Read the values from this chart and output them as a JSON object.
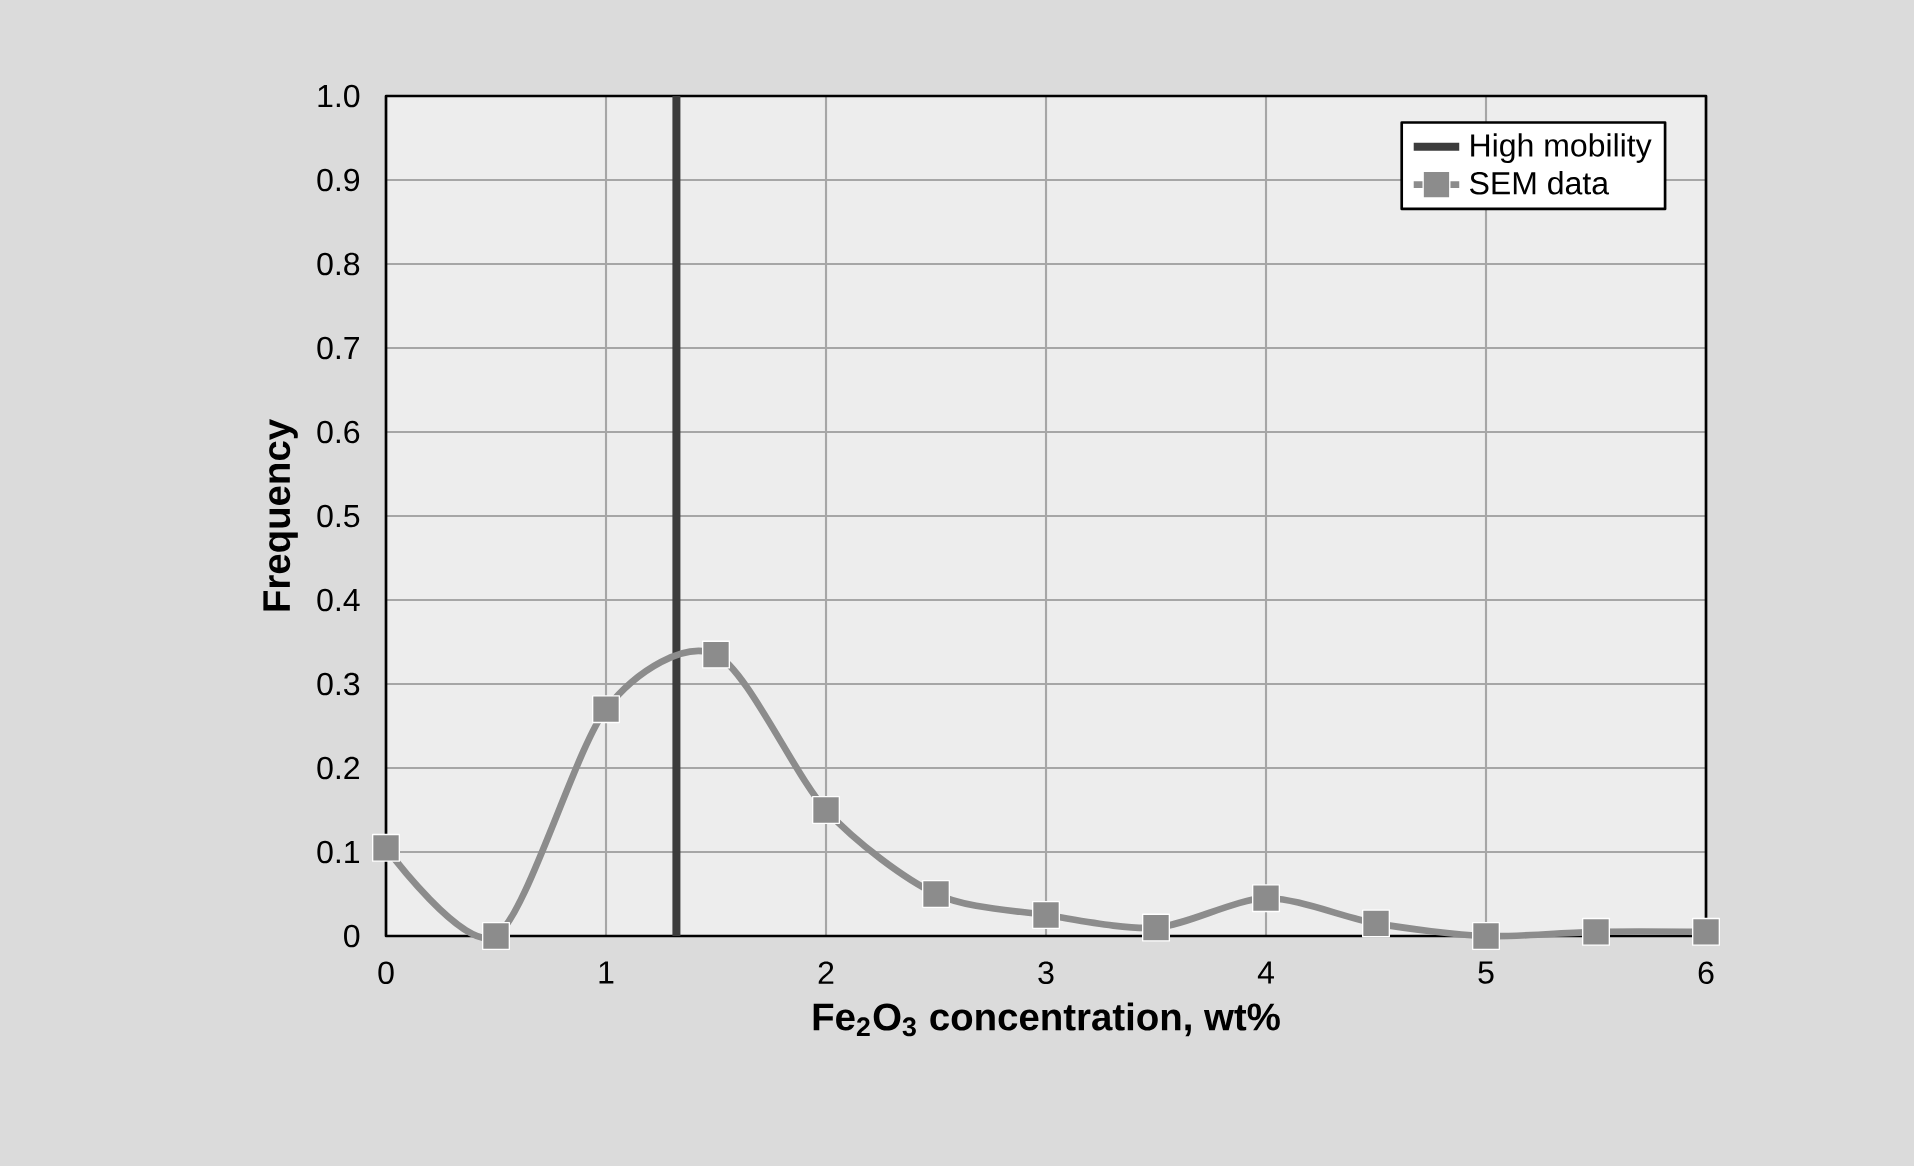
{
  "chart_data": {
    "type": "line",
    "xlabel": "Fe$_{2}$O$_{3}$ concentration, wt%",
    "ylabel": "Frequency",
    "x": [
      0,
      0.5,
      1,
      1.5,
      2,
      2.5,
      3,
      3.5,
      4,
      4.5,
      5,
      5.5,
      6
    ],
    "series": [
      {
        "name": "High mobility",
        "color": "#3c3c3c",
        "x": [
          1.32,
          1.32
        ],
        "values": [
          0,
          1
        ],
        "marker": "none"
      },
      {
        "name": "SEM data",
        "color": "#8c8c8c",
        "values": [
          0.105,
          0,
          0.27,
          0.335,
          0.15,
          0.05,
          0.025,
          0.01,
          0.045,
          0.015,
          0,
          0.005,
          0.005
        ]
      }
    ],
    "xlim": [
      0,
      6
    ],
    "xticks": [
      0,
      1,
      2,
      3,
      4,
      5,
      6
    ],
    "ylim": [
      0,
      1
    ],
    "yticks": [
      0,
      0.1,
      0.2,
      0.3,
      0.4,
      0.5,
      0.6,
      0.7,
      0.8,
      0.9,
      {
        "value": 1,
        "label": "1.0"
      }
    ],
    "grid": true,
    "legend": "top right",
    "marker": "square",
    "line_style": "solid"
  }
}
